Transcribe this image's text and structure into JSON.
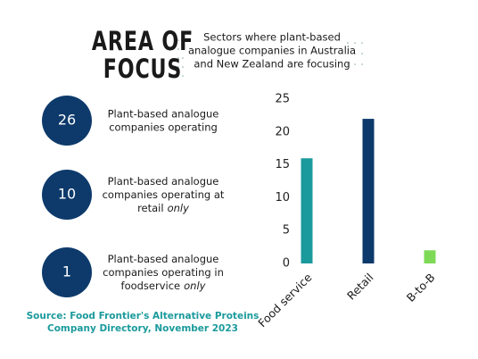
{
  "header": {
    "title": [
      "AREA OF",
      "FOCUS"
    ],
    "subtitle": [
      "Sectors where plant-based",
      "analogue companies in Australia",
      "and New Zealand are focusing"
    ]
  },
  "stats": [
    {
      "value": "26",
      "lines": [
        "Plant-based analogue",
        "companies operating"
      ]
    },
    {
      "value": "10",
      "lines": [
        "Plant-based analogue",
        "companies operating at",
        "retail"
      ],
      "emphasis": "only"
    },
    {
      "value": "1",
      "lines": [
        "Plant-based analogue",
        "companies operating in",
        "foodservice"
      ],
      "emphasis": "only"
    }
  ],
  "source": [
    "Source: Food Frontier's Alternative Proteins",
    "Company Directory, November 2023"
  ],
  "chart_data": {
    "type": "bar",
    "categories": [
      "Food service",
      "Retail",
      "B-to-B"
    ],
    "values": [
      16,
      22,
      2
    ],
    "colors": [
      "#1b9a9c",
      "#0d3a6b",
      "#7ed957"
    ],
    "ylim": [
      0,
      25
    ],
    "yticks": [
      0,
      5,
      10,
      15,
      20,
      25
    ],
    "grid": false
  }
}
